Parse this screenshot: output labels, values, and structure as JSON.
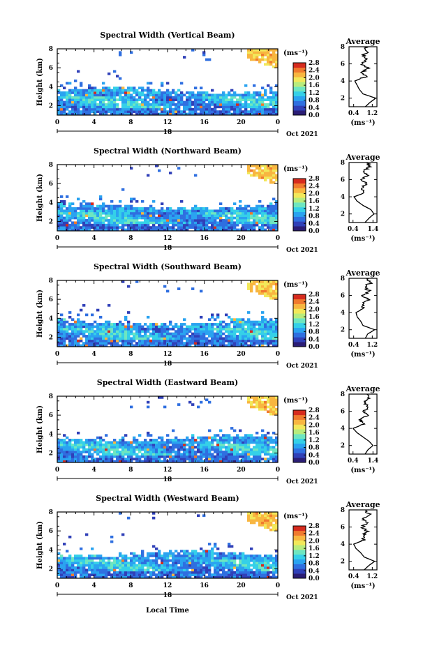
{
  "chart_data": {
    "type": "heatmap",
    "x_ticks": [
      "0",
      "4",
      "8",
      "12",
      "16",
      "20",
      "0"
    ],
    "day_label": "18",
    "month_year": "Oct 2021",
    "xlabel": "Local Time",
    "ylabel": "Height (km)",
    "y_ticks": [
      "2",
      "4",
      "6",
      "8"
    ],
    "ylim": [
      1,
      8
    ],
    "xlim": [
      0,
      24
    ],
    "unit": "(ms⁻¹)",
    "colormap": [
      "#2b1d75",
      "#3040b8",
      "#2f6fe0",
      "#2aa3f0",
      "#35d0e8",
      "#6ee6c0",
      "#b8ec7c",
      "#f2e85a",
      "#f8b640",
      "#f07a2e",
      "#d62b1e"
    ],
    "panels": [
      {
        "title": "Spectral Width (Vertical Beam)",
        "cbar_ticks": [
          "0.0",
          "0.4",
          "0.8",
          "1.2",
          "1.6",
          "2.0",
          "2.4",
          "2.8"
        ],
        "avg_title": "Average",
        "avg_x_ticks": [
          "0.4",
          "1.2"
        ],
        "avg_xlim": [
          0.2,
          1.4
        ],
        "avg_profile": {
          "height": [
            1.0,
            1.5,
            2.0,
            2.5,
            3.0,
            3.5,
            4.0,
            4.5,
            5.0,
            5.5,
            6.0,
            6.5,
            7.0,
            7.5,
            8.0
          ],
          "value": [
            0.9,
            1.1,
            1.35,
            0.8,
            0.65,
            0.55,
            0.45,
            0.9,
            0.75,
            1.0,
            0.7,
            0.95,
            0.8,
            1.0,
            0.9
          ]
        }
      },
      {
        "title": "Spectral Width (Northward Beam)",
        "cbar_ticks": [
          "0.0",
          "0.4",
          "0.8",
          "1.2",
          "1.6",
          "2.0",
          "2.4",
          "2.8"
        ],
        "avg_title": "Average",
        "avg_x_ticks": [
          "0.4",
          "1.4"
        ],
        "avg_xlim": [
          0.2,
          1.6
        ],
        "avg_profile": {
          "height": [
            1.0,
            1.5,
            2.0,
            2.5,
            3.0,
            3.5,
            4.0,
            4.5,
            5.0,
            5.5,
            6.0,
            6.5,
            7.0,
            7.5,
            8.0
          ],
          "value": [
            1.0,
            1.2,
            1.45,
            1.3,
            0.9,
            0.6,
            0.45,
            1.0,
            0.8,
            1.1,
            0.85,
            1.15,
            0.9,
            1.25,
            1.1
          ]
        }
      },
      {
        "title": "Spectral Width (Southward Beam)",
        "cbar_ticks": [
          "0.0",
          "0.4",
          "0.8",
          "1.2",
          "1.6",
          "2.0",
          "2.4",
          "2.8"
        ],
        "avg_title": "Average",
        "avg_x_ticks": [
          "0.4",
          "1.2"
        ],
        "avg_xlim": [
          0.2,
          1.4
        ],
        "avg_profile": {
          "height": [
            1.0,
            1.5,
            2.0,
            2.5,
            3.0,
            3.5,
            4.0,
            4.5,
            5.0,
            5.5,
            6.0,
            6.5,
            7.0,
            7.5,
            8.0
          ],
          "value": [
            0.9,
            1.0,
            1.3,
            0.8,
            0.7,
            0.55,
            0.5,
            0.85,
            0.75,
            1.05,
            0.8,
            1.1,
            0.85,
            1.15,
            0.95
          ]
        }
      },
      {
        "title": "Spectral Width (Eastward Beam)",
        "cbar_ticks": [
          "0.0",
          "0.4",
          "0.8",
          "1.2",
          "1.6",
          "2.0",
          "2.4",
          "2.8"
        ],
        "avg_title": "Average",
        "avg_x_ticks": [
          "0.4",
          "1.4"
        ],
        "avg_xlim": [
          0.2,
          1.6
        ],
        "avg_profile": {
          "height": [
            1.0,
            1.5,
            2.0,
            2.5,
            3.0,
            3.5,
            4.0,
            4.5,
            5.0,
            5.5,
            6.0,
            6.5,
            7.0,
            7.5,
            8.0
          ],
          "value": [
            1.0,
            1.15,
            1.4,
            1.2,
            0.9,
            0.6,
            0.4,
            0.95,
            0.75,
            1.1,
            0.9,
            1.2,
            0.95,
            1.25,
            1.1
          ]
        }
      },
      {
        "title": "Spectral Width (Westward Beam)",
        "cbar_ticks": [
          "0.0",
          "0.4",
          "0.8",
          "1.2",
          "1.6",
          "2.0",
          "2.4",
          "2.8"
        ],
        "avg_title": "Average",
        "avg_x_ticks": [
          "0.4",
          "1.2"
        ],
        "avg_xlim": [
          0.2,
          1.4
        ],
        "avg_profile": {
          "height": [
            1.0,
            1.5,
            2.0,
            2.5,
            3.0,
            3.5,
            4.0,
            4.5,
            5.0,
            5.5,
            6.0,
            6.5,
            7.0,
            7.5,
            8.0
          ],
          "value": [
            0.85,
            1.05,
            1.3,
            0.85,
            0.7,
            0.5,
            0.4,
            0.85,
            0.8,
            1.0,
            0.75,
            1.0,
            0.8,
            1.05,
            0.9
          ]
        }
      }
    ]
  }
}
